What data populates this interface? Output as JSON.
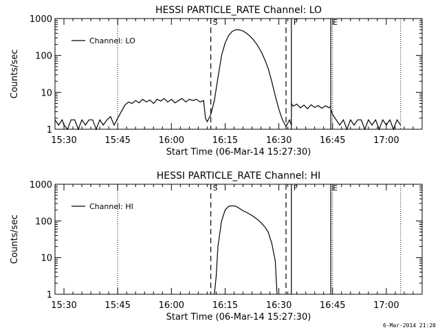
{
  "footer": {
    "timestamp": "6-Mar-2014 21:20"
  },
  "chart_data": [
    {
      "type": "line",
      "title": "HESSI PARTICLE_RATE Channel: LO",
      "xlabel": "Start Time (06-Mar-14 15:27:30)",
      "ylabel": "Counts/sec",
      "yscale": "log",
      "ylim": [
        1,
        1000
      ],
      "xlim": [
        "15:27:30",
        "17:10:00"
      ],
      "x_ticks": [
        "15:30",
        "15:45",
        "16:00",
        "16:15",
        "16:30",
        "16:45",
        "17:00"
      ],
      "y_ticks": [
        "1",
        "10",
        "100",
        "1000"
      ],
      "legend": {
        "placement": "top-left",
        "entries": [
          "Channel: LO"
        ]
      },
      "markers": [
        {
          "label": "S",
          "time": "16:11",
          "style": "dashed"
        },
        {
          "label": "",
          "time": "16:32",
          "style": "dashed"
        },
        {
          "label": "F",
          "time": "16:33:30",
          "style": "solid"
        },
        {
          "label": "E",
          "time": "16:44:30",
          "style": "solid"
        }
      ],
      "dotted_lines": [
        "15:45",
        "16:45",
        "17:04"
      ],
      "series": [
        {
          "name": "Channel: LO",
          "segments": [
            [
              [
                "15:27:30",
                1.8
              ],
              [
                "15:28:30",
                1.3
              ],
              [
                "15:29:30",
                1.8
              ],
              [
                "15:30:00",
                1.3
              ],
              [
                "15:31:00",
                1.0
              ],
              [
                "15:32:00",
                1.8
              ],
              [
                "15:33:00",
                1.8
              ],
              [
                "15:34:00",
                1.0
              ],
              [
                "15:35:00",
                1.8
              ],
              [
                "15:36:00",
                1.3
              ],
              [
                "15:37:00",
                1.8
              ],
              [
                "15:38:00",
                1.8
              ],
              [
                "15:39:00",
                1.0
              ],
              [
                "15:40:00",
                1.8
              ],
              [
                "15:41:00",
                1.3
              ],
              [
                "15:42:00",
                1.8
              ],
              [
                "15:43:00",
                2.2
              ],
              [
                "15:44:00",
                1.3
              ],
              [
                "15:45:00",
                2.0
              ],
              [
                "15:46:00",
                3.0
              ],
              [
                "15:47:00",
                4.5
              ],
              [
                "15:48:00",
                5.5
              ],
              [
                "15:49:00",
                5.0
              ],
              [
                "15:50:00",
                6.0
              ],
              [
                "15:51:00",
                5.2
              ],
              [
                "15:52:00",
                6.5
              ],
              [
                "15:53:00",
                5.5
              ],
              [
                "15:54:00",
                6.2
              ],
              [
                "15:55:00",
                5.0
              ],
              [
                "15:56:00",
                6.5
              ],
              [
                "15:57:00",
                5.8
              ],
              [
                "15:58:00",
                6.8
              ],
              [
                "15:59:00",
                5.5
              ],
              [
                "16:00:00",
                6.5
              ],
              [
                "16:01:00",
                5.2
              ],
              [
                "16:02:00",
                6.0
              ],
              [
                "16:03:00",
                6.8
              ],
              [
                "16:04:00",
                5.5
              ],
              [
                "16:05:00",
                6.5
              ],
              [
                "16:06:00",
                6.0
              ],
              [
                "16:07:00",
                6.5
              ],
              [
                "16:08:00",
                5.5
              ],
              [
                "16:09:00",
                6.0
              ],
              [
                "16:09:30",
                2.0
              ],
              [
                "16:10:00",
                1.6
              ],
              [
                "16:11:00",
                2.5
              ],
              [
                "16:12:00",
                6.0
              ],
              [
                "16:13:00",
                25
              ],
              [
                "16:14:00",
                100
              ],
              [
                "16:15:00",
                220
              ],
              [
                "16:16:00",
                350
              ],
              [
                "16:17:00",
                450
              ],
              [
                "16:18:00",
                500
              ],
              [
                "16:19:00",
                490
              ],
              [
                "16:20:00",
                460
              ],
              [
                "16:21:00",
                400
              ],
              [
                "16:22:00",
                330
              ],
              [
                "16:23:00",
                260
              ],
              [
                "16:24:00",
                190
              ],
              [
                "16:25:00",
                130
              ],
              [
                "16:26:00",
                80
              ],
              [
                "16:27:00",
                45
              ],
              [
                "16:28:00",
                20
              ],
              [
                "16:29:00",
                8
              ],
              [
                "16:30:00",
                3.5
              ],
              [
                "16:31:00",
                1.8
              ],
              [
                "16:32:00",
                1.2
              ],
              [
                "16:33:00",
                1.8
              ],
              [
                "16:33:30",
                1.3
              ]
            ],
            [
              [
                "16:33:30",
                5.0
              ],
              [
                "16:34:00",
                4.2
              ],
              [
                "16:35:00",
                4.8
              ],
              [
                "16:36:00",
                3.8
              ],
              [
                "16:37:00",
                4.5
              ],
              [
                "16:38:00",
                3.6
              ],
              [
                "16:39:00",
                4.6
              ],
              [
                "16:40:00",
                3.9
              ],
              [
                "16:41:00",
                4.4
              ],
              [
                "16:42:00",
                3.7
              ],
              [
                "16:43:00",
                4.3
              ],
              [
                "16:44:00",
                3.8
              ],
              [
                "16:44:30",
                4.2
              ]
            ],
            [
              [
                "16:44:30",
                3.5
              ],
              [
                "16:45:00",
                2.5
              ],
              [
                "16:46:00",
                1.8
              ],
              [
                "16:47:00",
                1.3
              ],
              [
                "16:48:00",
                1.8
              ],
              [
                "16:49:00",
                1.0
              ],
              [
                "16:50:00",
                1.8
              ],
              [
                "16:51:00",
                1.3
              ],
              [
                "16:52:00",
                1.8
              ],
              [
                "16:53:00",
                1.8
              ],
              [
                "16:54:00",
                1.0
              ],
              [
                "16:55:00",
                1.8
              ],
              [
                "16:56:00",
                1.3
              ],
              [
                "16:57:00",
                1.8
              ],
              [
                "16:58:00",
                1.0
              ],
              [
                "16:59:00",
                1.8
              ],
              [
                "17:00:00",
                1.3
              ],
              [
                "17:01:00",
                1.8
              ],
              [
                "17:02:00",
                1.0
              ],
              [
                "17:03:00",
                1.8
              ],
              [
                "17:04:00",
                1.3
              ]
            ]
          ]
        }
      ]
    },
    {
      "type": "line",
      "title": "HESSI PARTICLE_RATE Channel: HI",
      "xlabel": "Start Time (06-Mar-14 15:27:30)",
      "ylabel": "Counts/sec",
      "yscale": "log",
      "ylim": [
        1,
        1000
      ],
      "xlim": [
        "15:27:30",
        "17:10:00"
      ],
      "x_ticks": [
        "15:30",
        "15:45",
        "16:00",
        "16:15",
        "16:30",
        "16:45",
        "17:00"
      ],
      "y_ticks": [
        "1",
        "10",
        "100",
        "1000"
      ],
      "legend": {
        "placement": "top-left",
        "entries": [
          "Channel: HI"
        ]
      },
      "markers": [
        {
          "label": "S",
          "time": "16:11",
          "style": "dashed"
        },
        {
          "label": "",
          "time": "16:32",
          "style": "dashed"
        },
        {
          "label": "F",
          "time": "16:33:30",
          "style": "solid"
        },
        {
          "label": "E",
          "time": "16:44:30",
          "style": "solid"
        }
      ],
      "dotted_lines": [
        "15:45",
        "16:45",
        "17:04"
      ],
      "series": [
        {
          "name": "Channel: HI",
          "segments": [
            [
              [
                "16:12:00",
                1.0
              ],
              [
                "16:12:30",
                3
              ],
              [
                "16:13:00",
                20
              ],
              [
                "16:14:00",
                100
              ],
              [
                "16:15:00",
                200
              ],
              [
                "16:16:00",
                250
              ],
              [
                "16:17:00",
                260
              ],
              [
                "16:18:00",
                250
              ],
              [
                "16:19:00",
                220
              ],
              [
                "16:20:00",
                190
              ],
              [
                "16:21:00",
                170
              ],
              [
                "16:22:00",
                150
              ],
              [
                "16:23:00",
                130
              ],
              [
                "16:24:00",
                110
              ],
              [
                "16:25:00",
                90
              ],
              [
                "16:26:00",
                70
              ],
              [
                "16:27:00",
                50
              ],
              [
                "16:28:00",
                25
              ],
              [
                "16:29:00",
                8
              ],
              [
                "16:29:30",
                1.0
              ]
            ]
          ]
        }
      ]
    }
  ]
}
